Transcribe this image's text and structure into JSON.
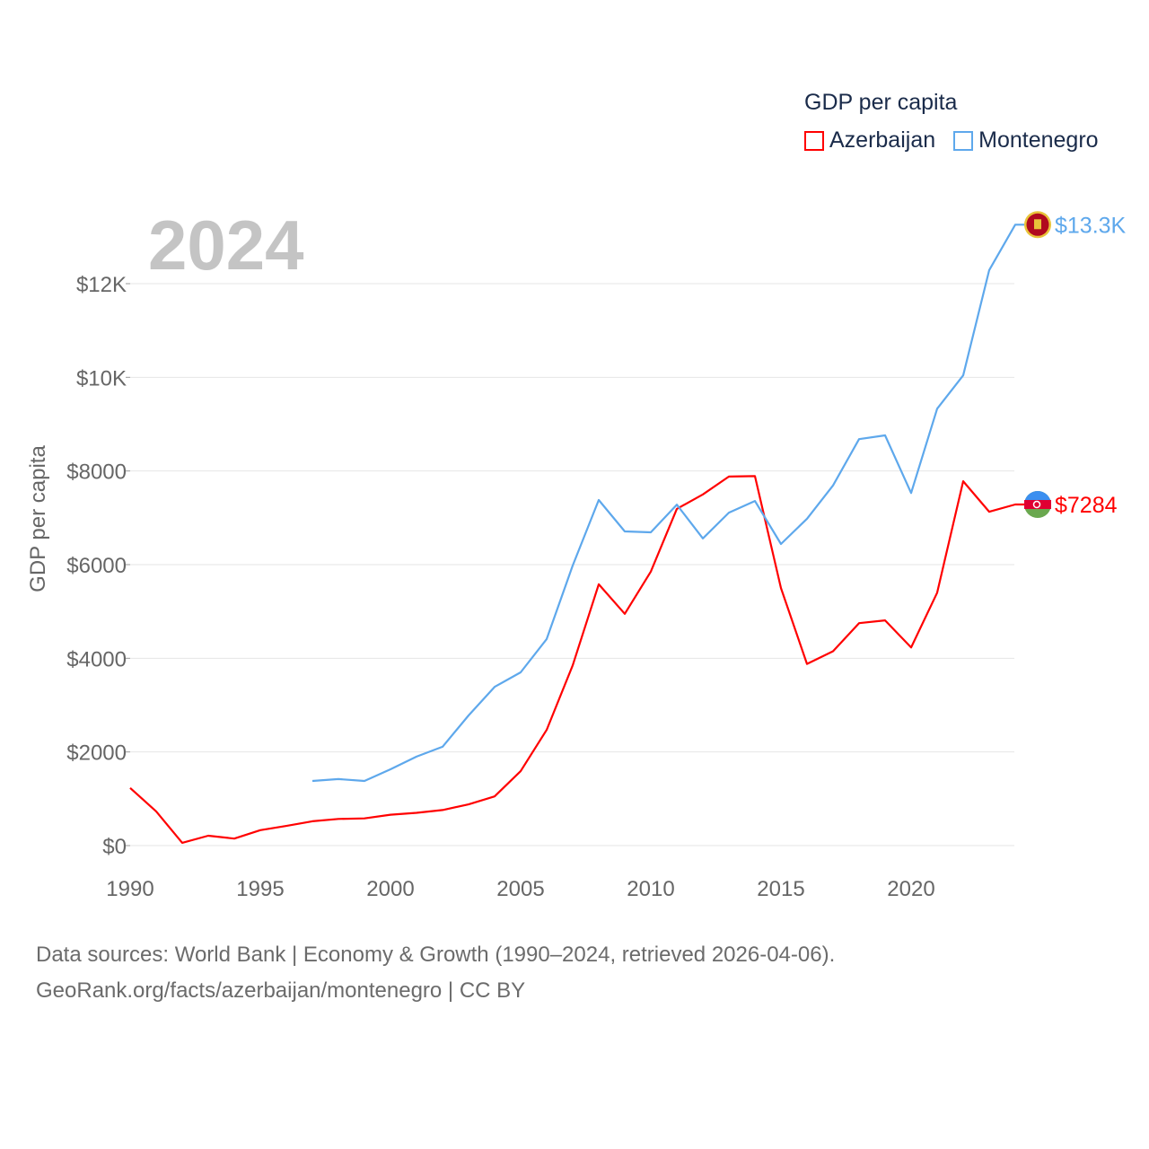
{
  "chart_data": {
    "type": "line",
    "title": "GDP per capita",
    "ylabel": "GDP per capita",
    "xlabel": "",
    "year_label": "2024",
    "xlim": [
      1990,
      2024
    ],
    "ylim": [
      0,
      13300
    ],
    "x_ticks": [
      1990,
      1995,
      2000,
      2005,
      2010,
      2015,
      2020
    ],
    "x_tick_labels": [
      "1990",
      "1995",
      "2000",
      "2005",
      "2010",
      "2015",
      "2020"
    ],
    "y_ticks": [
      0,
      2000,
      4000,
      6000,
      8000,
      10000,
      12000
    ],
    "y_tick_labels": [
      "$0",
      "$2000",
      "$4000",
      "$6000",
      "$8000",
      "$10K",
      "$12K"
    ],
    "grid": true,
    "legend_position": "top-right",
    "series": [
      {
        "name": "Azerbaijan",
        "color": "#ff0000",
        "end_label": "$7284",
        "flag": "azerbaijan-flag",
        "x": [
          1990,
          1991,
          1992,
          1993,
          1994,
          1995,
          1996,
          1997,
          1998,
          1999,
          2000,
          2001,
          2002,
          2003,
          2004,
          2005,
          2006,
          2007,
          2008,
          2009,
          2010,
          2011,
          2012,
          2013,
          2014,
          2015,
          2016,
          2017,
          2018,
          2019,
          2020,
          2021,
          2022,
          2023,
          2024
        ],
        "values": [
          1230,
          730,
          60,
          210,
          150,
          330,
          420,
          520,
          570,
          580,
          660,
          700,
          760,
          880,
          1050,
          1590,
          2470,
          3850,
          5580,
          4950,
          5850,
          7190,
          7500,
          7880,
          7890,
          5500,
          3880,
          4150,
          4750,
          4810,
          4230,
          5400,
          7780,
          7130,
          7284
        ]
      },
      {
        "name": "Montenegro",
        "color": "#5ea8ec",
        "end_label": "$13.3K",
        "flag": "montenegro-flag",
        "x": [
          1997,
          1998,
          1999,
          2000,
          2001,
          2002,
          2003,
          2004,
          2005,
          2006,
          2007,
          2008,
          2009,
          2010,
          2011,
          2012,
          2013,
          2014,
          2015,
          2016,
          2017,
          2018,
          2019,
          2020,
          2021,
          2022,
          2023,
          2024
        ],
        "values": [
          1380,
          1420,
          1380,
          1630,
          1900,
          2110,
          2780,
          3390,
          3700,
          4410,
          5980,
          7380,
          6710,
          6690,
          7280,
          6560,
          7110,
          7360,
          6440,
          6980,
          7690,
          8680,
          8760,
          7530,
          9330,
          10040,
          12290,
          13260
        ]
      }
    ]
  },
  "footer": {
    "line1": "Data sources: World Bank | Economy & Growth (1990–2024, retrieved 2026-04-06).",
    "line2": "GeoRank.org/facts/azerbaijan/montenegro | CC BY"
  }
}
